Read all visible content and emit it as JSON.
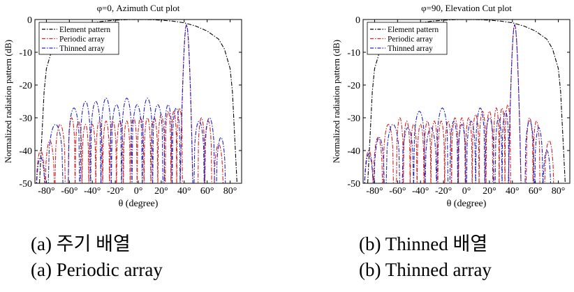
{
  "chart_data": [
    {
      "type": "line",
      "title": "φ=0, Azimuth Cut plot",
      "xlabel": "θ (degree)",
      "ylabel": "Normalized radiation pattern (dB)",
      "xlim": [
        -90,
        90
      ],
      "ylim": [
        -50,
        0
      ],
      "xticks": [
        -80,
        -60,
        -40,
        -20,
        0,
        20,
        40,
        60,
        80
      ],
      "xtick_labels": [
        "-80°",
        "-60°",
        "-40°",
        "-20°",
        "0°",
        "20°",
        "40°",
        "60°",
        "80°"
      ],
      "yticks": [
        0,
        -10,
        -20,
        -30,
        -40,
        -50
      ],
      "ytick_labels": [
        "0",
        "-10",
        "-20",
        "-30",
        "-40",
        "-50"
      ],
      "grid": false,
      "legend_position": "top-left",
      "main_beam": 42,
      "series": [
        {
          "name": "Element pattern",
          "color": "#000000",
          "style": "dash-dot",
          "x": [
            -86,
            -84,
            -82,
            -80,
            -75,
            -70,
            -60,
            -50,
            -40,
            -30,
            -20,
            -10,
            0,
            10,
            20,
            30,
            40,
            50,
            60,
            70,
            75,
            80,
            82,
            84,
            86
          ],
          "y": [
            -50,
            -36,
            -22,
            -15,
            -9,
            -6,
            -3.5,
            -2,
            -1,
            -0.5,
            -0.2,
            -0.05,
            0,
            -0.05,
            -0.2,
            -0.5,
            -1,
            -2,
            -3.5,
            -6,
            -9,
            -15,
            -22,
            -36,
            -50
          ]
        },
        {
          "name": "Periodic array",
          "color": "#d42020",
          "style": "dash-dot",
          "lobes": [
            {
              "x": -85,
              "y": -40
            },
            {
              "x": -77,
              "y": -37
            },
            {
              "x": -68,
              "y": -32
            },
            {
              "x": -58,
              "y": -30
            },
            {
              "x": -52,
              "y": -31
            },
            {
              "x": -46,
              "y": -32
            },
            {
              "x": -40,
              "y": -32
            },
            {
              "x": -34,
              "y": -31
            },
            {
              "x": -28,
              "y": -31
            },
            {
              "x": -22,
              "y": -31
            },
            {
              "x": -16,
              "y": -31
            },
            {
              "x": -10,
              "y": -31
            },
            {
              "x": -4,
              "y": -30
            },
            {
              "x": 2,
              "y": -30
            },
            {
              "x": 8,
              "y": -30
            },
            {
              "x": 14,
              "y": -30
            },
            {
              "x": 20,
              "y": -29
            },
            {
              "x": 26,
              "y": -28
            },
            {
              "x": 31,
              "y": -28
            },
            {
              "x": 36,
              "y": -27
            },
            {
              "x": 55,
              "y": -30
            },
            {
              "x": 61,
              "y": -31
            },
            {
              "x": 70,
              "y": -38
            }
          ]
        },
        {
          "name": "Thinned array",
          "color": "#2020c8",
          "style": "dash-dot",
          "lobes": [
            {
              "x": -85,
              "y": -42
            },
            {
              "x": -72,
              "y": -32
            },
            {
              "x": -56,
              "y": -27
            },
            {
              "x": -46,
              "y": -25
            },
            {
              "x": -37,
              "y": -25
            },
            {
              "x": -28,
              "y": -24
            },
            {
              "x": -19,
              "y": -26
            },
            {
              "x": -10,
              "y": -24
            },
            {
              "x": -1,
              "y": -26
            },
            {
              "x": 8,
              "y": -24
            },
            {
              "x": 17,
              "y": -26
            },
            {
              "x": 26,
              "y": -26
            },
            {
              "x": 33,
              "y": -27
            },
            {
              "x": 53,
              "y": -31
            },
            {
              "x": 62,
              "y": -30
            },
            {
              "x": 72,
              "y": -36
            }
          ]
        }
      ]
    },
    {
      "type": "line",
      "title": "φ=90, Elevation Cut plot",
      "xlabel": "θ (degree)",
      "ylabel": "Normalized radiation pattern (dB)",
      "xlim": [
        -90,
        90
      ],
      "ylim": [
        -50,
        0
      ],
      "xticks": [
        -80,
        -60,
        -40,
        -20,
        0,
        20,
        40,
        60,
        80
      ],
      "xtick_labels": [
        "-80°",
        "-60°",
        "-40°",
        "-20°",
        "0°",
        "20°",
        "40°",
        "60°",
        "80°"
      ],
      "yticks": [
        0,
        -10,
        -20,
        -30,
        -40,
        -50
      ],
      "ytick_labels": [
        "0",
        "-10",
        "-20",
        "-30",
        "-40",
        "-50"
      ],
      "grid": false,
      "legend_position": "top-left",
      "main_beam": 42,
      "series": [
        {
          "name": "Element pattern",
          "color": "#000000",
          "style": "dash-dot",
          "x": [
            -86,
            -84,
            -82,
            -80,
            -75,
            -70,
            -60,
            -50,
            -40,
            -30,
            -20,
            -10,
            0,
            10,
            20,
            30,
            40,
            50,
            60,
            70,
            75,
            80,
            82,
            84,
            86
          ],
          "y": [
            -50,
            -36,
            -22,
            -15,
            -9,
            -6,
            -3.5,
            -2,
            -1,
            -0.5,
            -0.2,
            -0.05,
            0,
            -0.05,
            -0.2,
            -0.5,
            -1,
            -2,
            -3.5,
            -6,
            -9,
            -15,
            -22,
            -36,
            -50
          ]
        },
        {
          "name": "Periodic array",
          "color": "#d42020",
          "style": "dash-dot",
          "lobes": [
            {
              "x": -85,
              "y": -40
            },
            {
              "x": -77,
              "y": -36
            },
            {
              "x": -68,
              "y": -32
            },
            {
              "x": -58,
              "y": -30
            },
            {
              "x": -52,
              "y": -31
            },
            {
              "x": -46,
              "y": -32
            },
            {
              "x": -40,
              "y": -32
            },
            {
              "x": -34,
              "y": -31
            },
            {
              "x": -28,
              "y": -31
            },
            {
              "x": -22,
              "y": -31
            },
            {
              "x": -16,
              "y": -31
            },
            {
              "x": -10,
              "y": -30
            },
            {
              "x": -4,
              "y": -30
            },
            {
              "x": 2,
              "y": -30
            },
            {
              "x": 8,
              "y": -29
            },
            {
              "x": 14,
              "y": -28
            },
            {
              "x": 20,
              "y": -28
            },
            {
              "x": 26,
              "y": -27
            },
            {
              "x": 31,
              "y": -27
            },
            {
              "x": 36,
              "y": -26
            },
            {
              "x": 55,
              "y": -30
            },
            {
              "x": 61,
              "y": -31
            },
            {
              "x": 72,
              "y": -37
            }
          ]
        },
        {
          "name": "Thinned array",
          "color": "#2020c8",
          "style": "dash-dot",
          "lobes": [
            {
              "x": -85,
              "y": -41
            },
            {
              "x": -76,
              "y": -36
            },
            {
              "x": -64,
              "y": -32
            },
            {
              "x": -51,
              "y": -33
            },
            {
              "x": -41,
              "y": -28
            },
            {
              "x": -31,
              "y": -33
            },
            {
              "x": -21,
              "y": -27
            },
            {
              "x": -11,
              "y": -31
            },
            {
              "x": -4,
              "y": -32
            },
            {
              "x": 4,
              "y": -31
            },
            {
              "x": 12,
              "y": -27
            },
            {
              "x": 20,
              "y": -30
            },
            {
              "x": 28,
              "y": -30
            },
            {
              "x": 34,
              "y": -28
            },
            {
              "x": 55,
              "y": -31
            },
            {
              "x": 63,
              "y": -33
            },
            {
              "x": 70,
              "y": -40
            }
          ]
        }
      ]
    }
  ],
  "captions": [
    {
      "ko": "(a) 주기 배열",
      "en": "(a) Periodic array"
    },
    {
      "ko": "(b) Thinned 배열",
      "en": "(b) Thinned array"
    }
  ]
}
